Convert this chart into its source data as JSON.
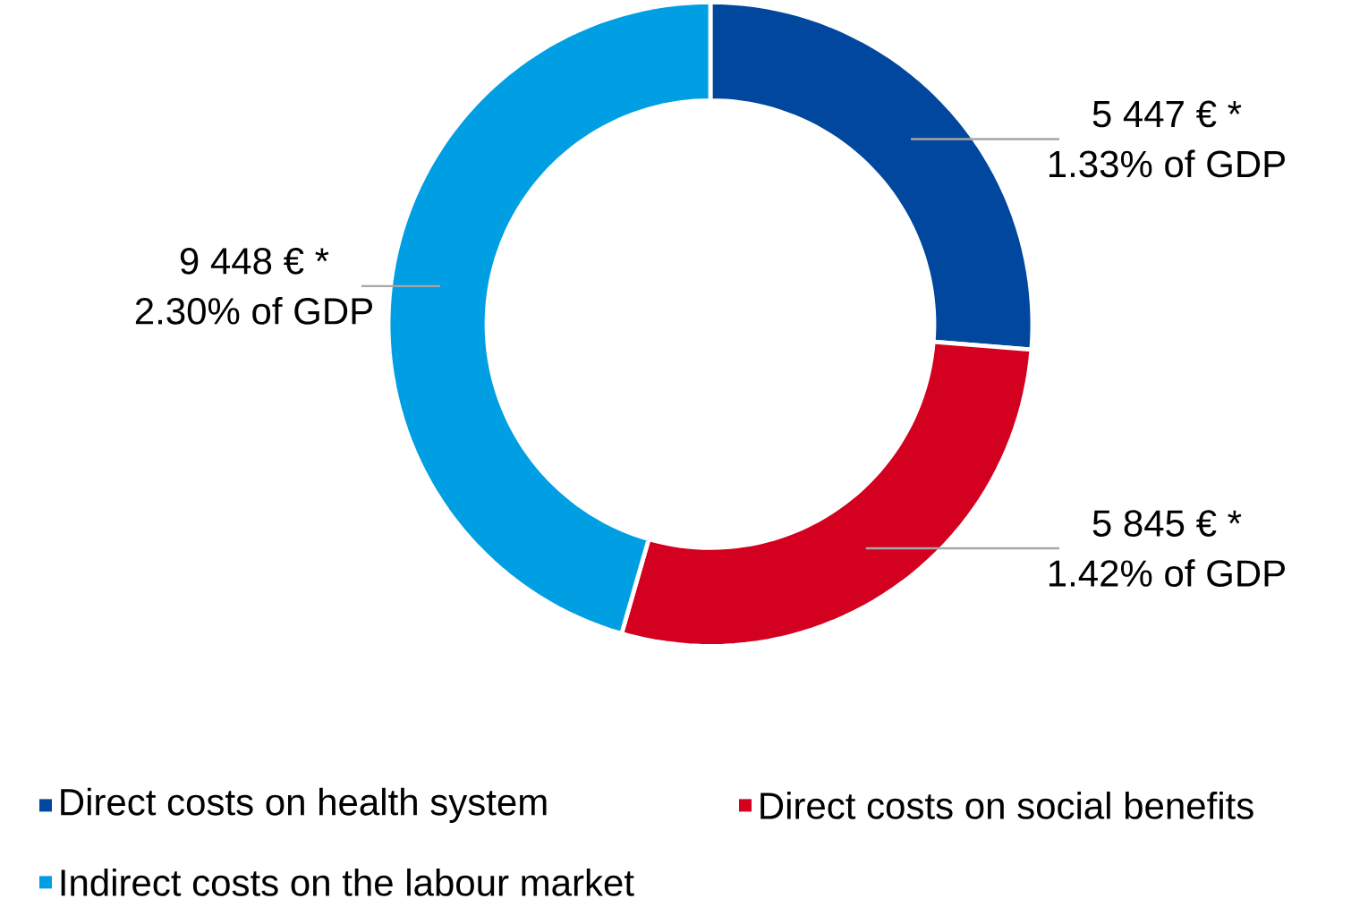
{
  "chart_data": {
    "type": "donut",
    "categories": [
      "Direct costs on health system",
      "Direct costs on social benefits",
      "Indirect costs on the labour market"
    ],
    "values": [
      5447,
      5845,
      9448
    ],
    "colors": [
      "#00479d",
      "#d3001f",
      "#009fe3"
    ],
    "value_labels": [
      "5 447 € *",
      "5 845 € *",
      "9 448 € *"
    ],
    "annotations": [
      "1.33% of GDP",
      "1.42% of GDP",
      "2.30% of GDP"
    ],
    "legend": "bottom"
  }
}
